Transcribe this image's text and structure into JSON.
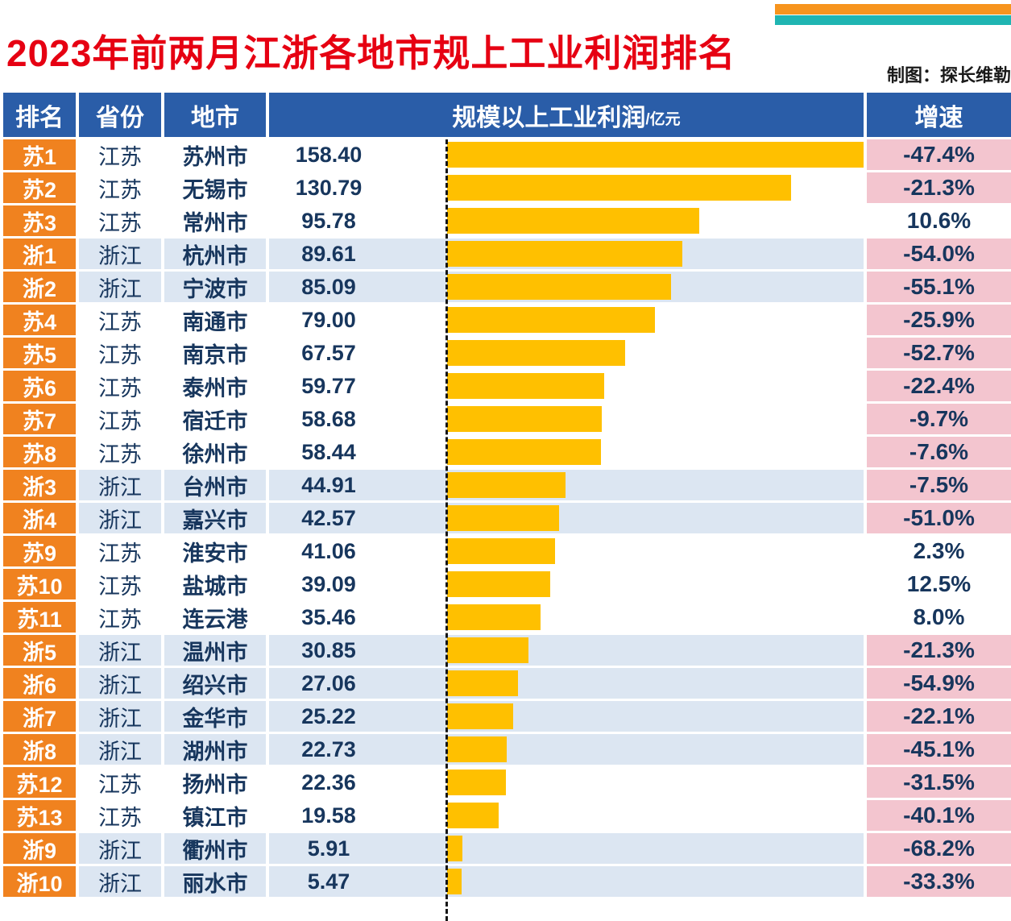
{
  "page": {
    "title": "2023年前两月江浙各地市规上工业利润排名",
    "credit": "制图：探长维勒"
  },
  "table": {
    "headers": {
      "rank": "排名",
      "province": "省份",
      "city": "地市",
      "profit": "规模以上工业利润",
      "profit_unit": "/亿元",
      "growth": "增速"
    }
  },
  "colors": {
    "header_bg": "#2A5DA8",
    "rank_bg": "#F0821F",
    "bar": "#FFC000",
    "row_jiangsu_bg": "#FFFFFF",
    "row_zhejiang_bg": "#DCE6F2",
    "negative_growth_bg": "#F3C5CF",
    "text_navy": "#17365D",
    "title_red": "#E60012",
    "strip_orange": "#F7941D",
    "strip_teal": "#1FB5B2"
  },
  "chart_data": {
    "type": "bar",
    "title": "2023年前两月江浙各地市规上工业利润排名",
    "value_label": "规模以上工业利润/亿元",
    "growth_label": "增速",
    "max_scale": 158.4,
    "rows": [
      {
        "rank": "苏1",
        "province": "江苏",
        "city": "苏州市",
        "profit": 158.4,
        "profit_text": "158.40",
        "growth": "-47.4%"
      },
      {
        "rank": "苏2",
        "province": "江苏",
        "city": "无锡市",
        "profit": 130.79,
        "profit_text": "130.79",
        "growth": "-21.3%"
      },
      {
        "rank": "苏3",
        "province": "江苏",
        "city": "常州市",
        "profit": 95.78,
        "profit_text": "95.78",
        "growth": "10.6%"
      },
      {
        "rank": "浙1",
        "province": "浙江",
        "city": "杭州市",
        "profit": 89.61,
        "profit_text": "89.61",
        "growth": "-54.0%"
      },
      {
        "rank": "浙2",
        "province": "浙江",
        "city": "宁波市",
        "profit": 85.09,
        "profit_text": "85.09",
        "growth": "-55.1%"
      },
      {
        "rank": "苏4",
        "province": "江苏",
        "city": "南通市",
        "profit": 79.0,
        "profit_text": "79.00",
        "growth": "-25.9%"
      },
      {
        "rank": "苏5",
        "province": "江苏",
        "city": "南京市",
        "profit": 67.57,
        "profit_text": "67.57",
        "growth": "-52.7%"
      },
      {
        "rank": "苏6",
        "province": "江苏",
        "city": "泰州市",
        "profit": 59.77,
        "profit_text": "59.77",
        "growth": "-22.4%"
      },
      {
        "rank": "苏7",
        "province": "江苏",
        "city": "宿迁市",
        "profit": 58.68,
        "profit_text": "58.68",
        "growth": "-9.7%"
      },
      {
        "rank": "苏8",
        "province": "江苏",
        "city": "徐州市",
        "profit": 58.44,
        "profit_text": "58.44",
        "growth": "-7.6%"
      },
      {
        "rank": "浙3",
        "province": "浙江",
        "city": "台州市",
        "profit": 44.91,
        "profit_text": "44.91",
        "growth": "-7.5%"
      },
      {
        "rank": "浙4",
        "province": "浙江",
        "city": "嘉兴市",
        "profit": 42.57,
        "profit_text": "42.57",
        "growth": "-51.0%"
      },
      {
        "rank": "苏9",
        "province": "江苏",
        "city": "淮安市",
        "profit": 41.06,
        "profit_text": "41.06",
        "growth": "2.3%"
      },
      {
        "rank": "苏10",
        "province": "江苏",
        "city": "盐城市",
        "profit": 39.09,
        "profit_text": "39.09",
        "growth": "12.5%"
      },
      {
        "rank": "苏11",
        "province": "江苏",
        "city": "连云港",
        "profit": 35.46,
        "profit_text": "35.46",
        "growth": "8.0%"
      },
      {
        "rank": "浙5",
        "province": "浙江",
        "city": "温州市",
        "profit": 30.85,
        "profit_text": "30.85",
        "growth": "-21.3%"
      },
      {
        "rank": "浙6",
        "province": "浙江",
        "city": "绍兴市",
        "profit": 27.06,
        "profit_text": "27.06",
        "growth": "-54.9%"
      },
      {
        "rank": "浙7",
        "province": "浙江",
        "city": "金华市",
        "profit": 25.22,
        "profit_text": "25.22",
        "growth": "-22.1%"
      },
      {
        "rank": "浙8",
        "province": "浙江",
        "city": "湖州市",
        "profit": 22.73,
        "profit_text": "22.73",
        "growth": "-45.1%"
      },
      {
        "rank": "苏12",
        "province": "江苏",
        "city": "扬州市",
        "profit": 22.36,
        "profit_text": "22.36",
        "growth": "-31.5%"
      },
      {
        "rank": "苏13",
        "province": "江苏",
        "city": "镇江市",
        "profit": 19.58,
        "profit_text": "19.58",
        "growth": "-40.1%"
      },
      {
        "rank": "浙9",
        "province": "浙江",
        "city": "衢州市",
        "profit": 5.91,
        "profit_text": "5.91",
        "growth": "-68.2%"
      },
      {
        "rank": "浙10",
        "province": "浙江",
        "city": "丽水市",
        "profit": 5.47,
        "profit_text": "5.47",
        "growth": "-33.3%"
      }
    ]
  }
}
